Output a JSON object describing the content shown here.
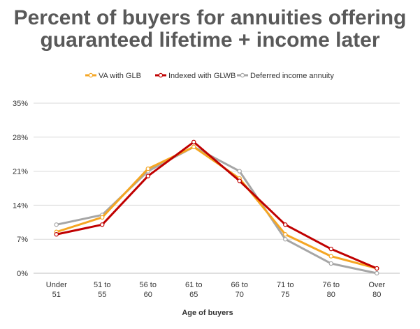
{
  "chart_data": {
    "type": "line",
    "title": [
      "Percent of buyers for annuities offering",
      "guaranteed lifetime + income later"
    ],
    "xlabel": "Age of buyers",
    "ylabel": "",
    "categories": [
      [
        "Under",
        "51"
      ],
      [
        "51 to",
        "55"
      ],
      [
        "56 to",
        "60"
      ],
      [
        "61 to",
        "65"
      ],
      [
        "66 to",
        "70"
      ],
      [
        "71 to",
        "75"
      ],
      [
        "76 to",
        "80"
      ],
      [
        "Over",
        "80"
      ]
    ],
    "yticks": [
      "0%",
      "7%",
      "14%",
      "21%",
      "28%",
      "35%"
    ],
    "ylim": [
      0,
      35
    ],
    "grid": true,
    "legend_position": "top",
    "series": [
      {
        "name": "VA with GLB",
        "color": "#F5A623",
        "values": [
          8.5,
          11.5,
          21.5,
          26,
          19.5,
          8,
          3.5,
          1
        ]
      },
      {
        "name": "Indexed with GLWB",
        "color": "#C00000",
        "values": [
          8,
          10,
          20,
          27,
          19,
          10,
          5,
          1
        ]
      },
      {
        "name": "Deferred income annuity",
        "color": "#A6A6A6",
        "values": [
          10,
          12,
          21,
          26,
          21,
          7,
          2,
          0
        ]
      }
    ]
  }
}
